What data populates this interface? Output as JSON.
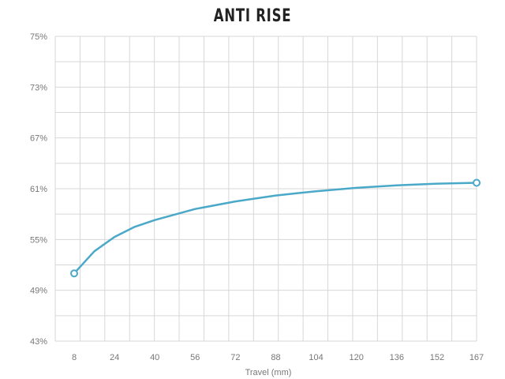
{
  "chart_data": {
    "type": "line",
    "title": "ANTI RISE",
    "xlabel": "Travel (mm)",
    "ylabel": "",
    "x_ticks": [
      "8",
      "24",
      "40",
      "56",
      "72",
      "88",
      "104",
      "120",
      "136",
      "152",
      "167"
    ],
    "y_ticks": [
      "75%",
      "73%",
      "67%",
      "61%",
      "55%",
      "49%",
      "43%"
    ],
    "xlim": [
      8,
      167
    ],
    "ylim": [
      43,
      75
    ],
    "grid": true,
    "series": [
      {
        "color": "#4aa8c8",
        "points": [
          {
            "x": 8,
            "y": 51.0
          },
          {
            "x": 16,
            "y": 53.6
          },
          {
            "x": 24,
            "y": 55.3
          },
          {
            "x": 32,
            "y": 56.5
          },
          {
            "x": 40,
            "y": 57.3
          },
          {
            "x": 56,
            "y": 58.6
          },
          {
            "x": 72,
            "y": 59.5
          },
          {
            "x": 88,
            "y": 60.2
          },
          {
            "x": 104,
            "y": 60.7
          },
          {
            "x": 120,
            "y": 61.1
          },
          {
            "x": 136,
            "y": 61.4
          },
          {
            "x": 152,
            "y": 61.6
          },
          {
            "x": 167,
            "y": 61.7
          }
        ],
        "markers": [
          {
            "x": 8,
            "y": 51.0
          },
          {
            "x": 167,
            "y": 61.7
          }
        ]
      }
    ]
  }
}
